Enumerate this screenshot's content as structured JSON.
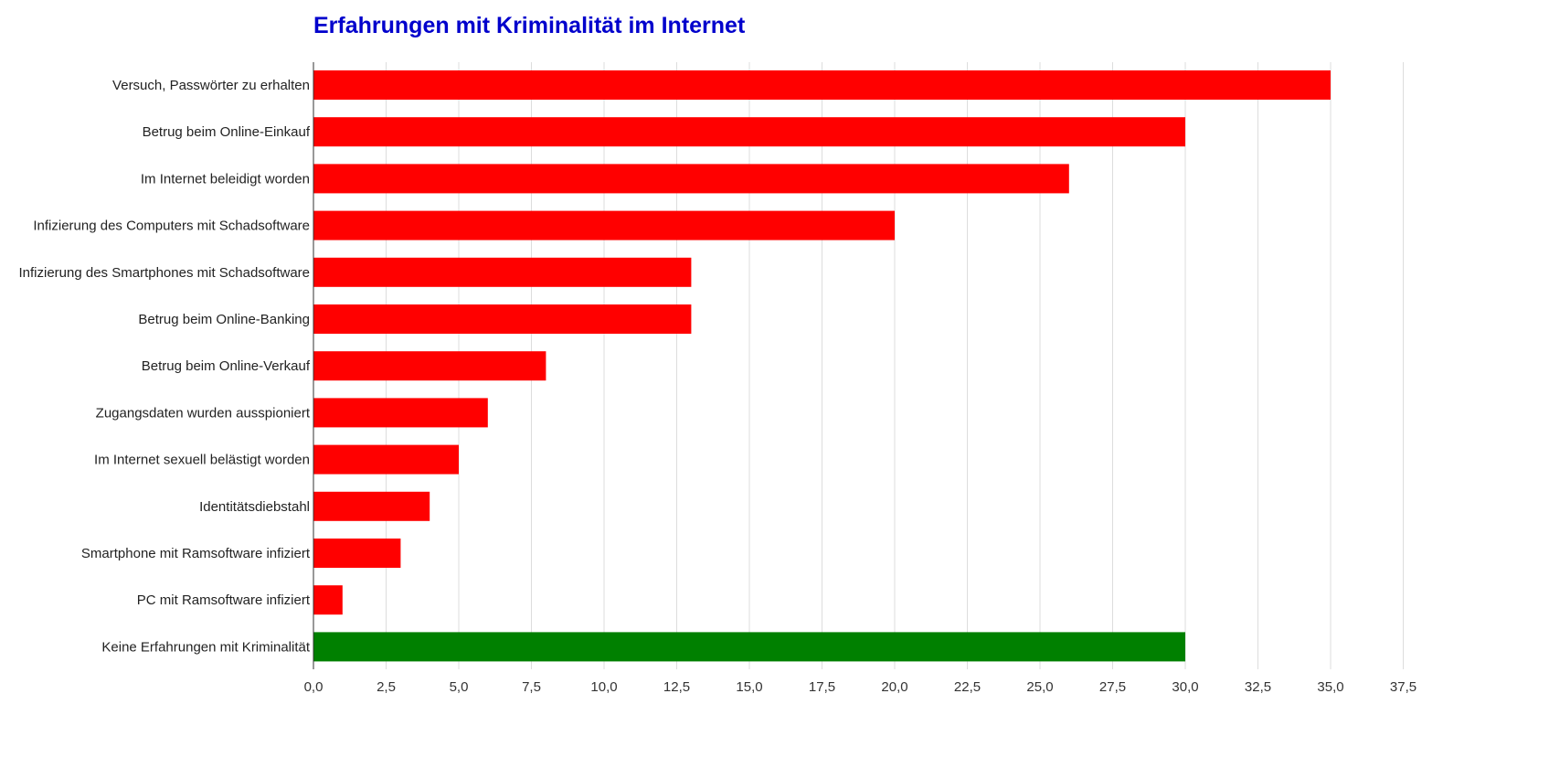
{
  "chart_data": {
    "type": "bar",
    "orientation": "horizontal",
    "title": "Erfahrungen mit Kriminalität im Internet",
    "xlabel": "",
    "ylabel": "",
    "xlim": [
      0,
      37.5
    ],
    "grid": true,
    "legend": "none",
    "categories": [
      "Versuch, Passwörter zu erhalten",
      "Betrug beim Online-Einkauf",
      "Im Internet beleidigt worden",
      "Infizierung des Computers mit Schadsoftware",
      "Infizierung des Smartphones mit Schadsoftware",
      "Betrug beim Online-Banking",
      "Betrug beim Online-Verkauf",
      "Zugangsdaten wurden ausspioniert",
      "Im Internet sexuell belästigt worden",
      "Identitätsdiebstahl",
      "Smartphone mit Ramsoftware infiziert",
      "PC mit Ramsoftware infiziert",
      "Keine Erfahrungen mit Kriminalität"
    ],
    "values": [
      35,
      30,
      26,
      20,
      13,
      13,
      8,
      6,
      5,
      4,
      3,
      1,
      30
    ],
    "colors": [
      "#ff0000",
      "#ff0000",
      "#ff0000",
      "#ff0000",
      "#ff0000",
      "#ff0000",
      "#ff0000",
      "#ff0000",
      "#ff0000",
      "#ff0000",
      "#ff0000",
      "#ff0000",
      "#008000"
    ],
    "xticks": [
      "0,0",
      "2,5",
      "5,0",
      "7,5",
      "10,0",
      "12,5",
      "15,0",
      "17,5",
      "20,0",
      "22,5",
      "25,0",
      "27,5",
      "30,0",
      "32,5",
      "35,0",
      "37,5"
    ],
    "title_color": "#0000cc"
  }
}
